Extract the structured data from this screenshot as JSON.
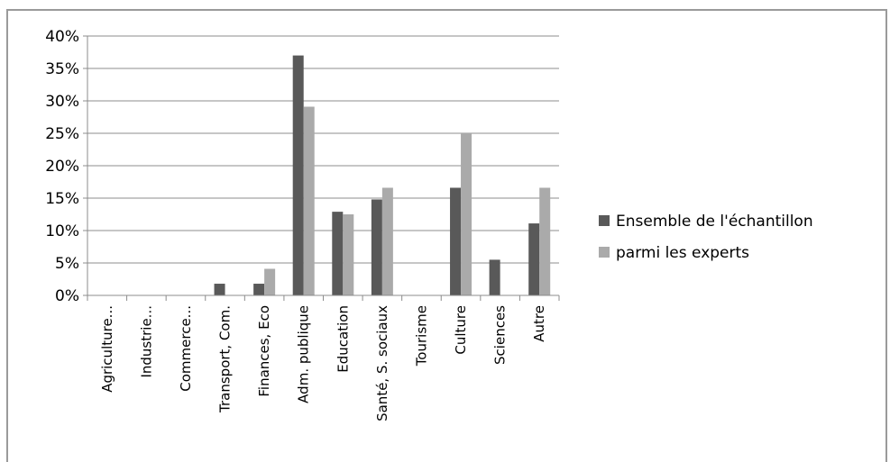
{
  "chart_data": {
    "type": "bar",
    "categories": [
      "Agriculture...",
      "Industrie...",
      "Commerce...",
      "Transport, Com.",
      "Finances, Eco",
      "Adm. publique",
      "Education",
      "Santé, S. sociaux",
      "Tourisme",
      "Culture",
      "Sciences",
      "Autre"
    ],
    "series": [
      {
        "name": "Ensemble de l'échantillon",
        "color": "#595959",
        "values": [
          0,
          0,
          0,
          1.8,
          1.8,
          37,
          12.9,
          14.8,
          0,
          16.6,
          5.5,
          11.1
        ]
      },
      {
        "name": "parmi les experts",
        "color": "#aaaaaa",
        "values": [
          0,
          0,
          0,
          0,
          4.1,
          29.1,
          12.5,
          16.6,
          0,
          25,
          0,
          16.6
        ]
      }
    ],
    "yticks": [
      "0%",
      "5%",
      "10%",
      "15%",
      "20%",
      "25%",
      "30%",
      "35%",
      "40%"
    ],
    "ylim": [
      0,
      40
    ],
    "grid": true,
    "legend_position": "right"
  }
}
